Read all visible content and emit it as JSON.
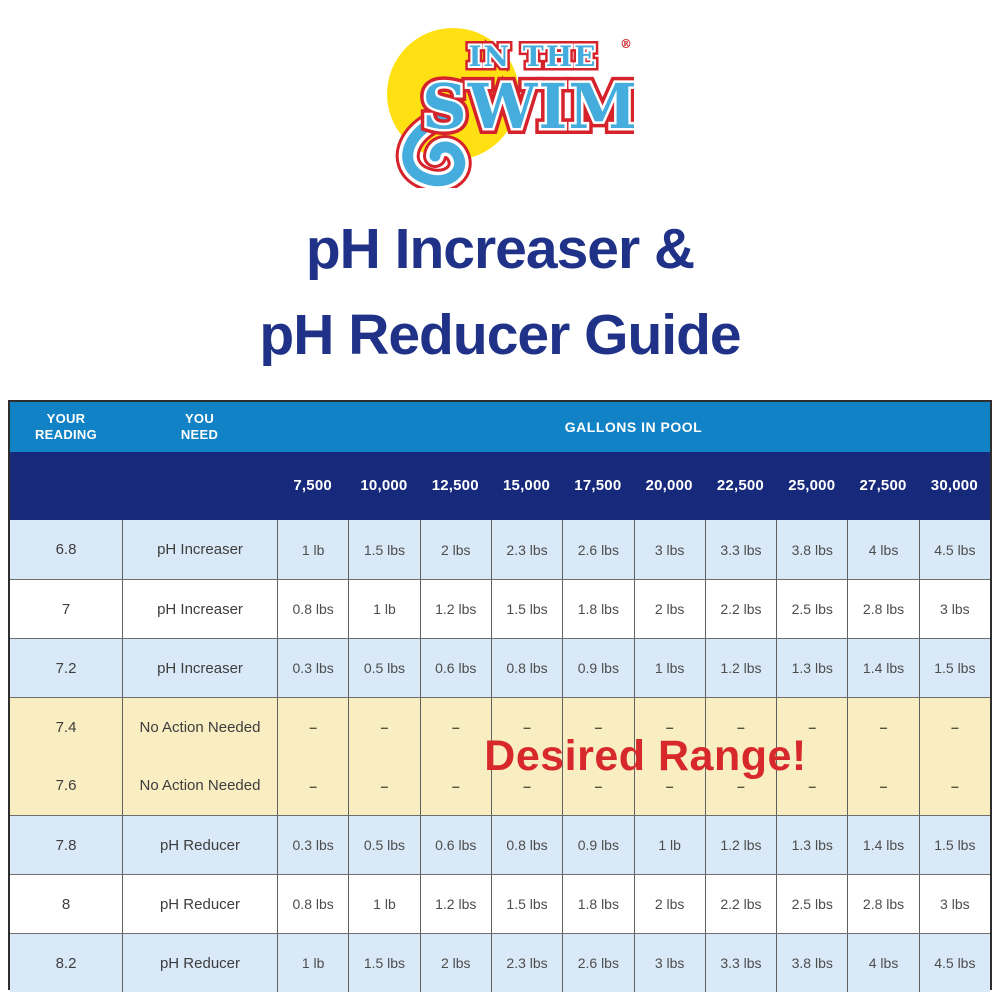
{
  "logo": {
    "text_top": "IN THE",
    "text_main": "SWIM",
    "registered": "®"
  },
  "title": {
    "line1": "pH Increaser &",
    "line2": "pH Reducer Guide"
  },
  "table": {
    "col_your_reading": "YOUR\nREADING",
    "col_you_need": "YOU\nNEED",
    "col_gallons": "GALLONS IN POOL",
    "gallon_columns": [
      "7,500",
      "10,000",
      "12,500",
      "15,000",
      "17,500",
      "20,000",
      "22,500",
      "25,000",
      "27,500",
      "30,000"
    ],
    "desired_range": "Desired Range!",
    "rows": [
      {
        "reading": "6.8",
        "need": "pH Increaser",
        "style": "blue",
        "values": [
          "1 lb",
          "1.5 lbs",
          "2 lbs",
          "2.3 lbs",
          "2.6 lbs",
          "3 lbs",
          "3.3 lbs",
          "3.8 lbs",
          "4 lbs",
          "4.5 lbs"
        ]
      },
      {
        "reading": "7",
        "need": "pH Increaser",
        "style": "white",
        "values": [
          "0.8 lbs",
          "1 lb",
          "1.2 lbs",
          "1.5 lbs",
          "1.8 lbs",
          "2 lbs",
          "2.2 lbs",
          "2.5 lbs",
          "2.8 lbs",
          "3 lbs"
        ]
      },
      {
        "reading": "7.2",
        "need": "pH Increaser",
        "style": "blue",
        "values": [
          "0.3 lbs",
          "0.5 lbs",
          "0.6 lbs",
          "0.8 lbs",
          "0.9 lbs",
          "1 lbs",
          "1.2 lbs",
          "1.3 lbs",
          "1.4 lbs",
          "1.5 lbs"
        ]
      },
      {
        "reading": "7.4",
        "need": "No Action Needed",
        "style": "yellow",
        "values": [
          "–",
          "–",
          "–",
          "–",
          "–",
          "–",
          "–",
          "–",
          "–",
          "–"
        ]
      },
      {
        "reading": "7.6",
        "need": "No Action Needed",
        "style": "yellow",
        "values": [
          "–",
          "–",
          "–",
          "–",
          "–",
          "–",
          "–",
          "–",
          "–",
          "–"
        ]
      },
      {
        "reading": "7.8",
        "need": "pH Reducer",
        "style": "blue",
        "values": [
          "0.3 lbs",
          "0.5 lbs",
          "0.6 lbs",
          "0.8 lbs",
          "0.9 lbs",
          "1 lb",
          "1.2 lbs",
          "1.3 lbs",
          "1.4 lbs",
          "1.5 lbs"
        ]
      },
      {
        "reading": "8",
        "need": "pH Reducer",
        "style": "white",
        "values": [
          "0.8 lbs",
          "1 lb",
          "1.2 lbs",
          "1.5 lbs",
          "1.8 lbs",
          "2 lbs",
          "2.2 lbs",
          "2.5 lbs",
          "2.8 lbs",
          "3 lbs"
        ]
      },
      {
        "reading": "8.2",
        "need": "pH Reducer",
        "style": "blue",
        "values": [
          "1 lb",
          "1.5 lbs",
          "2 lbs",
          "2.3 lbs",
          "2.6 lbs",
          "3 lbs",
          "3.3 lbs",
          "3.8 lbs",
          "4 lbs",
          "4.5 lbs"
        ]
      }
    ]
  },
  "colors": {
    "title_navy": "#1F3287",
    "header_light_blue": "#1182C5",
    "header_navy": "#17297B",
    "row_blue": "#D9E9F7",
    "row_white": "#FFFFFF",
    "row_yellow": "#F9EDC2",
    "desired_red": "#D7292B",
    "logo_blue": "#45ACDE",
    "logo_yellow": "#FFE113",
    "logo_red": "#D5222B"
  },
  "chart_data": {
    "type": "table",
    "title": "pH Increaser & pH Reducer Guide",
    "columns": [
      "Your Reading",
      "You Need",
      "7,500",
      "10,000",
      "12,500",
      "15,000",
      "17,500",
      "20,000",
      "22,500",
      "25,000",
      "27,500",
      "30,000"
    ],
    "rows": [
      [
        "6.8",
        "pH Increaser",
        "1 lb",
        "1.5 lbs",
        "2 lbs",
        "2.3 lbs",
        "2.6 lbs",
        "3 lbs",
        "3.3 lbs",
        "3.8 lbs",
        "4 lbs",
        "4.5 lbs"
      ],
      [
        "7",
        "pH Increaser",
        "0.8 lbs",
        "1 lb",
        "1.2 lbs",
        "1.5 lbs",
        "1.8 lbs",
        "2 lbs",
        "2.2 lbs",
        "2.5 lbs",
        "2.8 lbs",
        "3 lbs"
      ],
      [
        "7.2",
        "pH Increaser",
        "0.3 lbs",
        "0.5 lbs",
        "0.6 lbs",
        "0.8 lbs",
        "0.9 lbs",
        "1 lbs",
        "1.2 lbs",
        "1.3 lbs",
        "1.4 lbs",
        "1.5 lbs"
      ],
      [
        "7.4",
        "No Action Needed",
        "–",
        "–",
        "–",
        "–",
        "–",
        "–",
        "–",
        "–",
        "–",
        "–"
      ],
      [
        "7.6",
        "No Action Needed",
        "–",
        "–",
        "–",
        "–",
        "–",
        "–",
        "–",
        "–",
        "–",
        "–"
      ],
      [
        "7.8",
        "pH Reducer",
        "0.3 lbs",
        "0.5 lbs",
        "0.6 lbs",
        "0.8 lbs",
        "0.9 lbs",
        "1 lb",
        "1.2 lbs",
        "1.3 lbs",
        "1.4 lbs",
        "1.5 lbs"
      ],
      [
        "8",
        "pH Reducer",
        "0.8 lbs",
        "1 lb",
        "1.2 lbs",
        "1.5 lbs",
        "1.8 lbs",
        "2 lbs",
        "2.2 lbs",
        "2.5 lbs",
        "2.8 lbs",
        "3 lbs"
      ],
      [
        "8.2",
        "pH Reducer",
        "1 lb",
        "1.5 lbs",
        "2 lbs",
        "2.3 lbs",
        "2.6 lbs",
        "3 lbs",
        "3.3 lbs",
        "3.8 lbs",
        "4 lbs",
        "4.5 lbs"
      ]
    ],
    "annotation": "Desired Range!"
  }
}
